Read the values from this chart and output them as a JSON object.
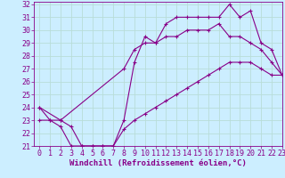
{
  "background_color": "#cceeff",
  "grid_color": "#b8ddd8",
  "line_color": "#880088",
  "xlim": [
    -0.5,
    23
  ],
  "ylim": [
    21,
    32.2
  ],
  "xlabel": "Windchill (Refroidissement éolien,°C)",
  "yticks": [
    21,
    22,
    23,
    24,
    25,
    26,
    27,
    28,
    29,
    30,
    31,
    32
  ],
  "xticks": [
    0,
    1,
    2,
    3,
    4,
    5,
    6,
    7,
    8,
    9,
    10,
    11,
    12,
    13,
    14,
    15,
    16,
    17,
    18,
    19,
    20,
    21,
    22,
    23
  ],
  "curve1_x": [
    0,
    1,
    2,
    3,
    4,
    5,
    6,
    7,
    8,
    9,
    10,
    11,
    12,
    13,
    14,
    15,
    16,
    17,
    18,
    19,
    20,
    21,
    22,
    23
  ],
  "curve1_y": [
    24,
    23,
    23,
    22.5,
    21,
    21,
    21,
    21,
    23,
    27.5,
    29.5,
    29,
    30.5,
    31,
    31,
    31,
    31,
    31,
    32,
    31,
    31.5,
    29,
    28.5,
    26.5
  ],
  "curve2_x": [
    0,
    1,
    2,
    3,
    4,
    5,
    6,
    7,
    8,
    9,
    10,
    11,
    12,
    13,
    14,
    15,
    16,
    17,
    18,
    19,
    20,
    21,
    22,
    23
  ],
  "curve2_y": [
    23,
    23,
    22.5,
    21,
    21,
    21,
    21,
    21,
    22.3,
    23,
    23.5,
    24,
    24.5,
    25,
    25.5,
    26,
    26.5,
    27,
    27.5,
    27.5,
    27.5,
    27,
    26.5,
    26.5
  ],
  "curve3_x": [
    0,
    2,
    8,
    9,
    10,
    11,
    12,
    13,
    14,
    15,
    16,
    17,
    18,
    19,
    20,
    21,
    22,
    23
  ],
  "curve3_y": [
    24,
    23,
    27,
    28.5,
    29,
    29,
    29.5,
    29.5,
    30,
    30,
    30,
    30.5,
    29.5,
    29.5,
    29,
    28.5,
    27.5,
    26.5
  ],
  "font_size_xlabel": 6.5,
  "font_size_ticks": 6,
  "marker": "+"
}
